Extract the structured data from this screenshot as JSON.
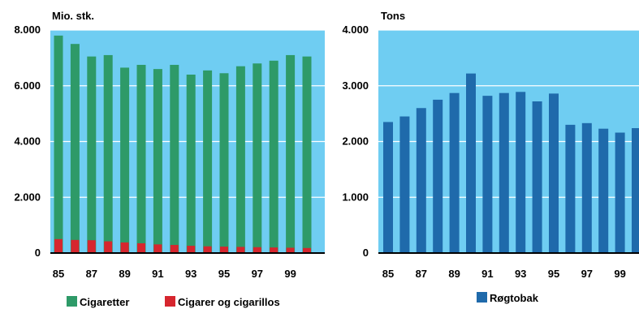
{
  "colors": {
    "plot_bg": "#6fcdf2",
    "grid": "#ffffff",
    "axis": "#000000",
    "cigaretter": "#2e9a68",
    "cigarer": "#d6262e",
    "rogtobak": "#1f6aab"
  },
  "chart_data": [
    {
      "type": "bar",
      "ylabel": "Mio. stk.",
      "ylim": [
        0,
        8000
      ],
      "yticks": [
        0,
        2000,
        4000,
        6000,
        8000
      ],
      "ytick_labels": [
        "0",
        "2.000",
        "4.000",
        "6.000",
        "8.000"
      ],
      "years": [
        85,
        86,
        87,
        88,
        89,
        90,
        91,
        92,
        93,
        94,
        95,
        96,
        97,
        98,
        99,
        100
      ],
      "xtick_labels": [
        "85",
        "87",
        "89",
        "91",
        "93",
        "95",
        "97",
        "99"
      ],
      "legend_position": "bottom",
      "series": [
        {
          "name": "Cigaretter",
          "color_key": "cigaretter",
          "values": [
            7800,
            7500,
            7050,
            7100,
            6650,
            6750,
            6600,
            6750,
            6400,
            6550,
            6450,
            6700,
            6800,
            6900,
            7100,
            7050
          ]
        },
        {
          "name": "Cigarer og cigarillos",
          "color_key": "cigarer",
          "values": [
            500,
            470,
            460,
            420,
            380,
            350,
            310,
            290,
            260,
            240,
            230,
            220,
            210,
            200,
            190,
            180
          ]
        }
      ]
    },
    {
      "type": "bar",
      "ylabel": "Tons",
      "ylim": [
        0,
        4000
      ],
      "yticks": [
        0,
        1000,
        2000,
        3000,
        4000
      ],
      "ytick_labels": [
        "0",
        "1.000",
        "2.000",
        "3.000",
        "4.000"
      ],
      "years": [
        85,
        86,
        87,
        88,
        89,
        90,
        91,
        92,
        93,
        94,
        95,
        96,
        97,
        98,
        99,
        100
      ],
      "xtick_labels": [
        "85",
        "87",
        "89",
        "91",
        "93",
        "95",
        "97",
        "99"
      ],
      "legend_position": "bottom",
      "series": [
        {
          "name": "Røgtobak",
          "color_key": "rogtobak",
          "values": [
            2350,
            2450,
            2600,
            2750,
            2870,
            3220,
            2820,
            2870,
            2890,
            2720,
            2860,
            2300,
            2330,
            2230,
            2160,
            2240
          ]
        }
      ]
    }
  ]
}
